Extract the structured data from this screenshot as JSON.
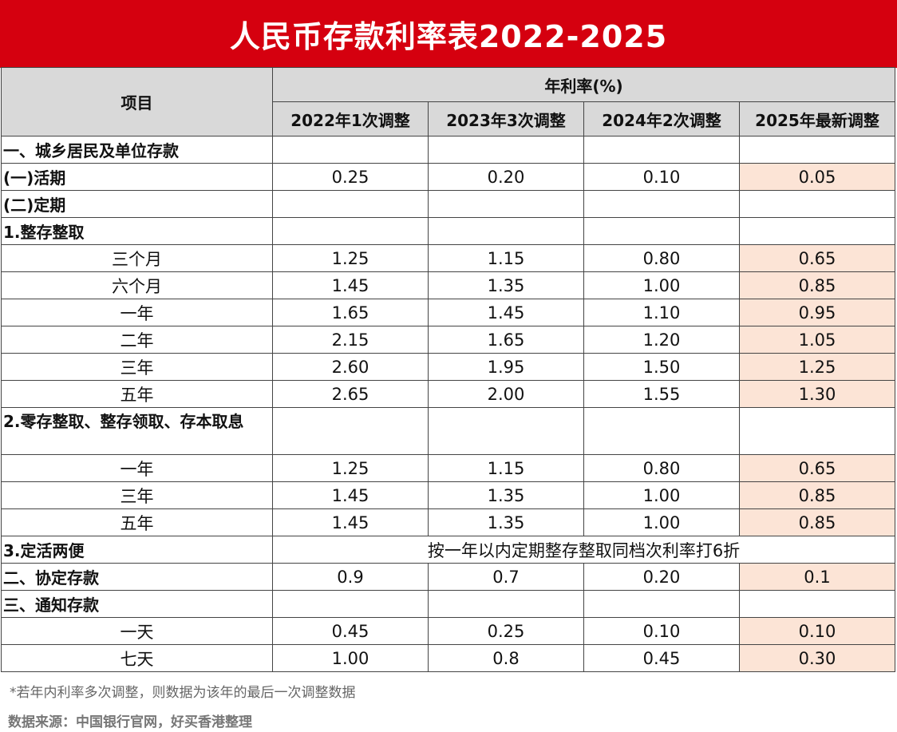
{
  "title": "人民币存款利率表2022-2025",
  "header": {
    "item": "项目",
    "group": "年利率(%)",
    "columns": [
      "2022年1次调整",
      "2023年3次调整",
      "2024年2次调整",
      "2025年最新调整"
    ]
  },
  "rows": {
    "r1": {
      "label": "一、城乡居民及单位存款"
    },
    "r2": {
      "label": "(一)活期",
      "v": [
        "0.25",
        "0.20",
        "0.10",
        "0.05"
      ]
    },
    "r3": {
      "label": "(二)定期"
    },
    "r4": {
      "label": "1.整存整取"
    },
    "r5": {
      "label": "三个月",
      "v": [
        "1.25",
        "1.15",
        "0.80",
        "0.65"
      ]
    },
    "r6": {
      "label": "六个月",
      "v": [
        "1.45",
        "1.35",
        "1.00",
        "0.85"
      ]
    },
    "r7": {
      "label": "一年",
      "v": [
        "1.65",
        "1.45",
        "1.10",
        "0.95"
      ]
    },
    "r8": {
      "label": "二年",
      "v": [
        "2.15",
        "1.65",
        "1.20",
        "1.05"
      ]
    },
    "r9": {
      "label": "三年",
      "v": [
        "2.60",
        "1.95",
        "1.50",
        "1.25"
      ]
    },
    "r10": {
      "label": "五年",
      "v": [
        "2.65",
        "2.00",
        "1.55",
        "1.30"
      ]
    },
    "r11": {
      "label": "2.零存整取、整存领取、存本取息"
    },
    "r12": {
      "label": "一年",
      "v": [
        "1.25",
        "1.15",
        "0.80",
        "0.65"
      ]
    },
    "r13": {
      "label": "三年",
      "v": [
        "1.45",
        "1.35",
        "1.00",
        "0.85"
      ]
    },
    "r14": {
      "label": "五年",
      "v": [
        "1.45",
        "1.35",
        "1.00",
        "0.85"
      ]
    },
    "r15": {
      "label": "3.定活两便",
      "note": "按一年以内定期整存整取同档次利率打6折"
    },
    "r16": {
      "label": "二、协定存款",
      "v": [
        "0.9",
        "0.7",
        "0.20",
        "0.1"
      ]
    },
    "r17": {
      "label": "三、通知存款"
    },
    "r18": {
      "label": "一天",
      "v": [
        "0.45",
        "0.25",
        "0.10",
        "0.10"
      ]
    },
    "r19": {
      "label": "七天",
      "v": [
        "1.00",
        "0.8",
        "0.45",
        "0.30"
      ]
    }
  },
  "footnote": "*若年内利率多次调整，则数据为该年的最后一次调整数据",
  "source": "数据来源：中国银行官网，好买香港整理",
  "colors": {
    "title_bg": "#d5000f",
    "header_bg": "#d9d9d9",
    "highlight": "#fce4d6"
  }
}
